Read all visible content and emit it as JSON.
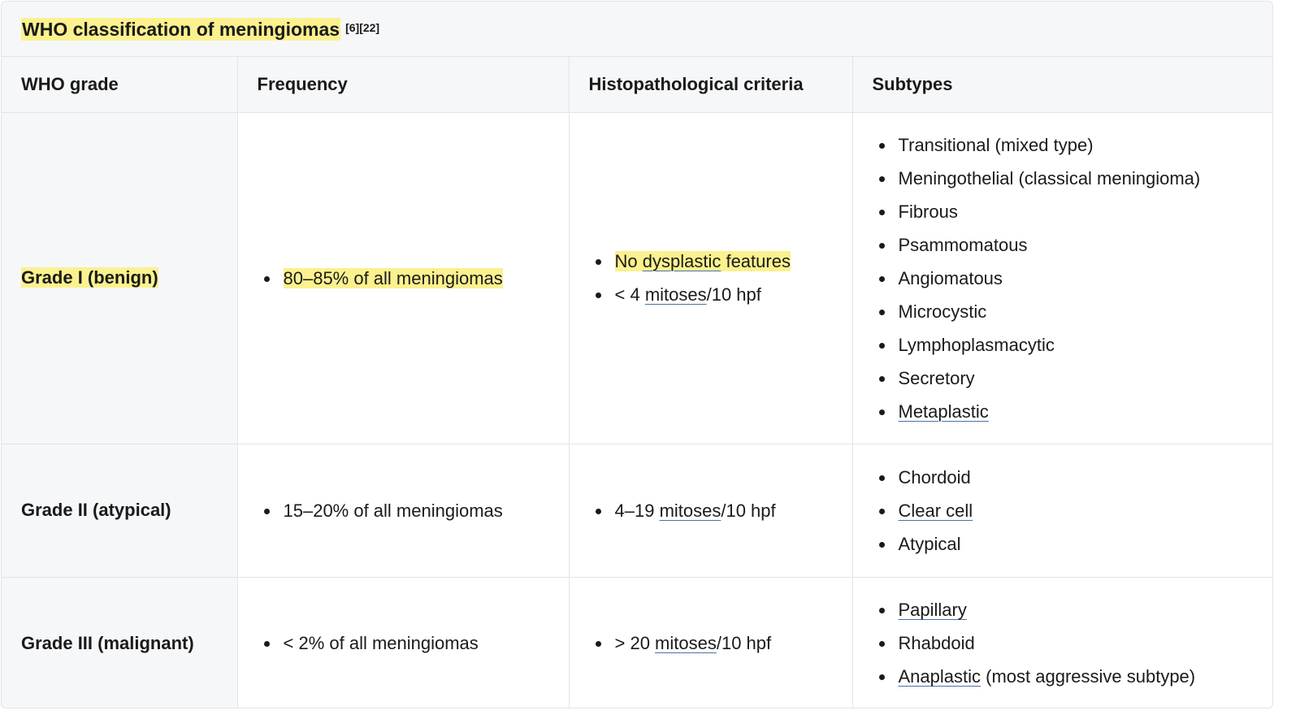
{
  "caption": {
    "title": "WHO classification of meningiomas",
    "refs": "[6][22]"
  },
  "headers": [
    "WHO grade",
    "Frequency",
    "Histopathological criteria",
    "Subtypes"
  ],
  "rows": [
    {
      "grade": "Grade I (benign)",
      "frequency": "80–85% of all meningiomas",
      "criteria": [
        {
          "text": "No dysplastic features"
        },
        {
          "prefix": "< 4 ",
          "link": "mitoses",
          "suffix": "/10 hpf"
        }
      ],
      "subtypes": [
        "Transitional (mixed type)",
        "Meningothelial (classical meningioma)",
        "Fibrous",
        "Psammomatous",
        "Angiomatous",
        "Microcystic",
        "Lymphoplasmacytic",
        "Secretory",
        "Metaplastic"
      ]
    },
    {
      "grade": "Grade II (atypical)",
      "frequency": "15–20% of all meningiomas",
      "criteria": [
        {
          "prefix": "4–19 ",
          "link": "mitoses",
          "suffix": "/10 hpf"
        }
      ],
      "subtypes": [
        "Chordoid",
        "Clear cell",
        "Atypical"
      ]
    },
    {
      "grade": "Grade III (malignant)",
      "frequency": "< 2% of all meningiomas",
      "criteria": [
        {
          "prefix": "> 20 ",
          "link": "mitoses",
          "suffix": "/10 hpf"
        }
      ],
      "subtypes": [
        "Papillary",
        "Rhabdoid",
        "Anaplastic",
        " (most aggressive subtype)"
      ]
    }
  ],
  "colors": {
    "highlight": "#fbf18e",
    "header_bg": "#f6f7f9",
    "border": "#e1e4ea",
    "link_underline": "#4a6fa5"
  }
}
